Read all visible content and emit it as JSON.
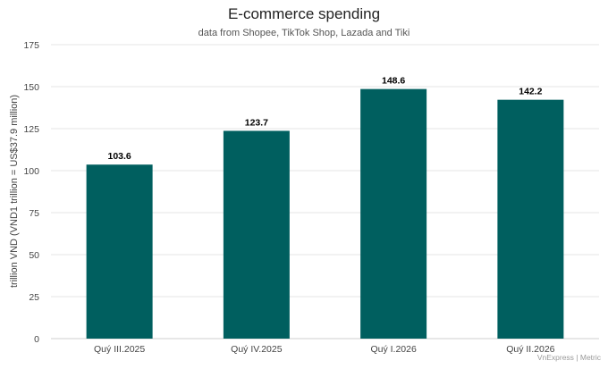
{
  "chart_data": {
    "type": "bar",
    "title": "E-commerce spending",
    "subtitle": "data from Shopee, TikTok Shop, Lazada and Tiki",
    "ylabel": "trillion VND (VND1 trillion = US$37.9 million)",
    "xlabel": "",
    "categories": [
      "Quý III.2025",
      "Quý IV.2025",
      "Quý I.2026",
      "Quý II.2026"
    ],
    "values": [
      103.6,
      123.7,
      148.6,
      142.2
    ],
    "data_labels": [
      "103.6",
      "123.7",
      "148.6",
      "142.2"
    ],
    "ylim": [
      0,
      175
    ],
    "yticks": [
      0,
      25,
      50,
      75,
      100,
      125,
      150,
      175
    ],
    "grid": true,
    "legend": "none",
    "bar_color": "#005f5f",
    "source": "VnExpress | Metric"
  }
}
